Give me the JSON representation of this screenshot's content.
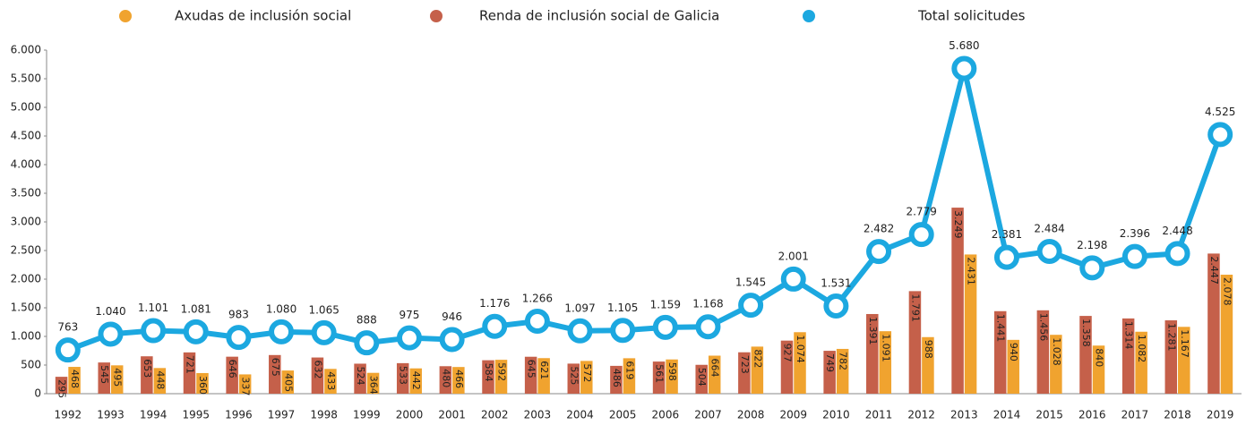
{
  "chart_data": {
    "type": "bar-line",
    "categories": [
      "1992",
      "1993",
      "1994",
      "1995",
      "1996",
      "1997",
      "1998",
      "1999",
      "2000",
      "2001",
      "2002",
      "2003",
      "2004",
      "2005",
      "2006",
      "2007",
      "2008",
      "2009",
      "2010",
      "2011",
      "2012",
      "2013",
      "2014",
      "2015",
      "2016",
      "2017",
      "2018",
      "2019"
    ],
    "series": [
      {
        "name": "Axudas de inclusión social",
        "color": "#f0a32f",
        "type": "bar",
        "values": [
          468,
          495,
          448,
          360,
          337,
          405,
          433,
          364,
          442,
          466,
          592,
          621,
          572,
          619,
          598,
          664,
          822,
          1074,
          782,
          1091,
          988,
          2431,
          940,
          1028,
          840,
          1082,
          1167,
          2078
        ],
        "value_labels": [
          "468",
          "495",
          "448",
          "360",
          "337",
          "405",
          "433",
          "364",
          "442",
          "466",
          "592",
          "621",
          "572",
          "619",
          "598",
          "664",
          "822",
          "1.074",
          "782",
          "1.091",
          "988",
          "2.431",
          "940",
          "1.028",
          "840",
          "1.082",
          "1.167",
          "2.078"
        ]
      },
      {
        "name": "Renda de inclusión social de Galicia",
        "color": "#c5604a",
        "type": "bar",
        "values": [
          295,
          545,
          653,
          721,
          646,
          675,
          632,
          524,
          533,
          480,
          584,
          645,
          525,
          486,
          561,
          504,
          723,
          927,
          749,
          1391,
          1791,
          3249,
          1441,
          1456,
          1358,
          1314,
          1281,
          2447
        ],
        "value_labels": [
          "295",
          "545",
          "653",
          "721",
          "646",
          "675",
          "632",
          "524",
          "533",
          "480",
          "584",
          "645",
          "525",
          "486",
          "561",
          "504",
          "723",
          "927",
          "749",
          "1.391",
          "1.791",
          "3.249",
          "1.441",
          "1.456",
          "1.358",
          "1.314",
          "1.281",
          "2.447"
        ]
      },
      {
        "name": "Total solicitudes",
        "color": "#1ca8e0",
        "type": "line",
        "values": [
          763,
          1040,
          1101,
          1081,
          983,
          1080,
          1065,
          888,
          975,
          946,
          1176,
          1266,
          1097,
          1105,
          1159,
          1168,
          1545,
          2001,
          1531,
          2482,
          2779,
          5680,
          2381,
          2484,
          2198,
          2396,
          2448,
          4525
        ],
        "value_labels": [
          "763",
          "1.040",
          "1.101",
          "1.081",
          "983",
          "1.080",
          "1.065",
          "888",
          "975",
          "946",
          "1.176",
          "1.266",
          "1.097",
          "1.105",
          "1.159",
          "1.168",
          "1.545",
          "2.001",
          "1.531",
          "2.482",
          "2.779",
          "5.680",
          "2.381",
          "2.484",
          "2.198",
          "2.396",
          "2.448",
          "4.525"
        ]
      }
    ],
    "ylim": [
      0,
      6000
    ],
    "yticks": [
      0,
      500,
      {
        "value": 1000,
        "label": "1.000"
      },
      {
        "value": 1500,
        "label": "1.500"
      },
      {
        "value": 2000,
        "label": "2.000"
      },
      {
        "value": 2500,
        "label": "2.500"
      },
      {
        "value": 3000,
        "label": "3.000"
      },
      {
        "value": 3500,
        "label": "3.500"
      },
      {
        "value": 4000,
        "label": "4.000"
      },
      {
        "value": 4500,
        "label": "4.500"
      },
      {
        "value": 5000,
        "label": "5.000"
      },
      {
        "value": 5500,
        "label": "5.500"
      },
      {
        "value": 6000,
        "label": "6.000"
      }
    ],
    "grid": false
  }
}
